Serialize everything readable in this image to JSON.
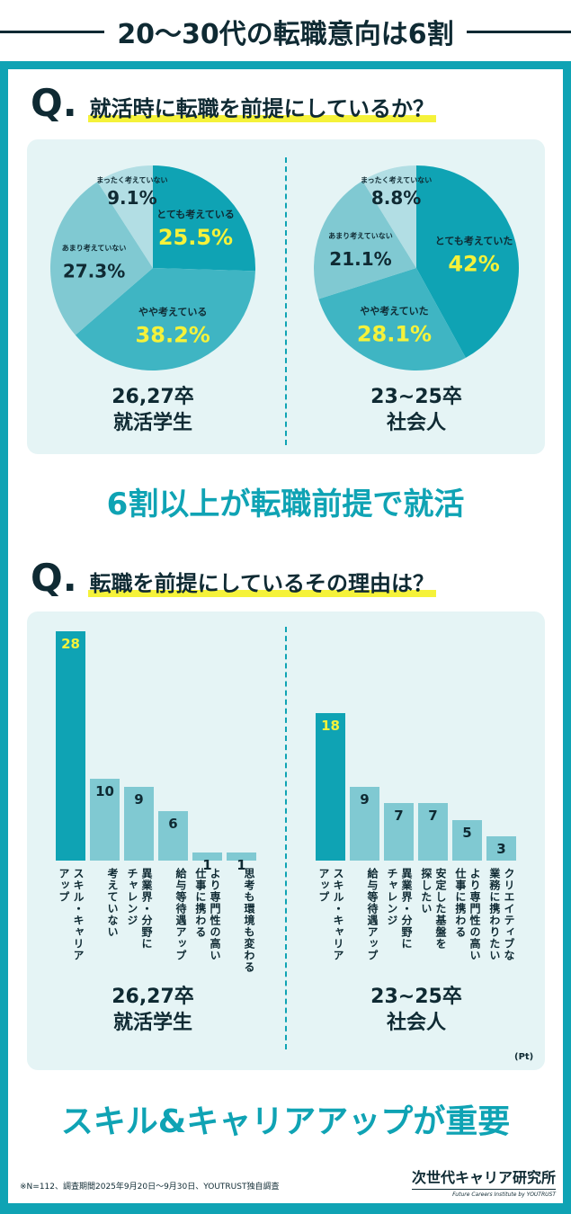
{
  "title": "20〜30代の転職意向は6割",
  "q1": {
    "mark": "Q.",
    "text": "就活時に転職を前提にしているか？"
  },
  "q2": {
    "mark": "Q.",
    "text": "転職を前提にしているその理由は？"
  },
  "headline1": "6割以上が転職前提で就活",
  "headline2": "スキル&キャリアアップが重要",
  "unit": "(Pt)",
  "note": "※N=112、調査期間2025年9月20日〜9月30日、YOUTRUST独自調査",
  "logo": {
    "name": "次世代キャリア研究所",
    "sub": "Future Careers Institute by YOUTRUST"
  },
  "colors": {
    "dark": "#0fa3b4",
    "mid": "#3fb5c3",
    "light": "#80c9d2",
    "pale": "#b2dee4",
    "highlight": "#f5f23a",
    "text": "#0f2a33"
  },
  "chart_data": [
    {
      "type": "pie",
      "caption": "26,27卒\n就活学生",
      "slices": [
        {
          "label": "とても考えている",
          "value": 25.5,
          "display": "25.5%"
        },
        {
          "label": "やや考えている",
          "value": 38.2,
          "display": "38.2%"
        },
        {
          "label": "あまり考えていない",
          "value": 27.3,
          "display": "27.3%"
        },
        {
          "label": "まったく考えていない",
          "value": 9.1,
          "display": "9.1%"
        }
      ]
    },
    {
      "type": "pie",
      "caption": "23~25卒\n社会人",
      "slices": [
        {
          "label": "とても考えていた",
          "value": 42,
          "display": "42%"
        },
        {
          "label": "やや考えていた",
          "value": 28.1,
          "display": "28.1%"
        },
        {
          "label": "あまり考えていない",
          "value": 21.1,
          "display": "21.1%"
        },
        {
          "label": "まったく考えていない",
          "value": 8.8,
          "display": "8.8%"
        }
      ]
    },
    {
      "type": "bar",
      "caption": "26,27卒\n就活学生",
      "unit": "Pt",
      "categories": [
        "スキル・キャリア\nアップ",
        "考えていない",
        "異業界・分野に\nチャレンジ",
        "給与等待遇アップ",
        "より専門性の高い\n仕事に携わる",
        "思考も環境も変わる"
      ],
      "values": [
        28,
        10,
        9,
        6,
        1,
        1
      ]
    },
    {
      "type": "bar",
      "caption": "23~25卒\n社会人",
      "unit": "Pt",
      "categories": [
        "スキル・キャリア\nアップ",
        "給与等待遇アップ",
        "異業界・分野に\nチャレンジ",
        "安定した基盤を\n探したい",
        "より専門性の高い\n仕事に携わる",
        "クリエイティブな\n業務に携わりたい"
      ],
      "values": [
        18,
        9,
        7,
        7,
        5,
        3
      ]
    }
  ]
}
